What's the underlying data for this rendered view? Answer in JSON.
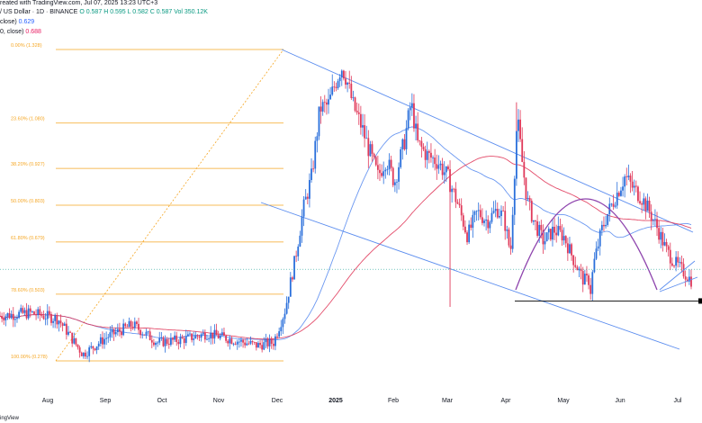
{
  "header": {
    "line1": "reated with TradingView.com, Jul 07, 2025 13:23 UTC+3",
    "symbol": "/ US Dollar · 1D · BINANCE",
    "ohlc": {
      "o": "O 0.587",
      "h": "H 0.595",
      "l": "L 0.582",
      "c": "C 0.587",
      "vol": "Vol 350.12K"
    },
    "ma1": "close)",
    "ma1_val": "0.629",
    "ma2": "0, close)",
    "ma2_val": "0.688"
  },
  "footer": {
    "brand": "ingView"
  },
  "colors": {
    "up": "#2a6fdb",
    "down": "#e0395a",
    "fib": "#f5a623",
    "channel": "#5b8def",
    "ma_fast": "#5b8def",
    "ma_slow": "#e0395a",
    "arc": "#8e44ad",
    "black": "#000000"
  },
  "chart_data": {
    "type": "candlestick",
    "x_labels": [
      "Aug",
      "Sep",
      "Oct",
      "Nov",
      "Dec",
      "2025",
      "Feb",
      "Mar",
      "Apr",
      "May",
      "Jun",
      "Jul"
    ],
    "fib_levels": [
      {
        "label": "0.00% (1.328)",
        "value": 1.328
      },
      {
        "label": "23.60% (1.080)",
        "value": 1.08
      },
      {
        "label": "38.20% (0.927)",
        "value": 0.927
      },
      {
        "label": "50.00% (0.803)",
        "value": 0.803
      },
      {
        "label": "61.80% (0.679)",
        "value": 0.679
      },
      {
        "label": "78.60% (0.503)",
        "value": 0.503
      },
      {
        "label": "100.00% (0.278)",
        "value": 0.278
      }
    ],
    "price_range": [
      0.1,
      1.45
    ],
    "bars": 365,
    "support_level": 0.48,
    "last_close": 0.587
  }
}
